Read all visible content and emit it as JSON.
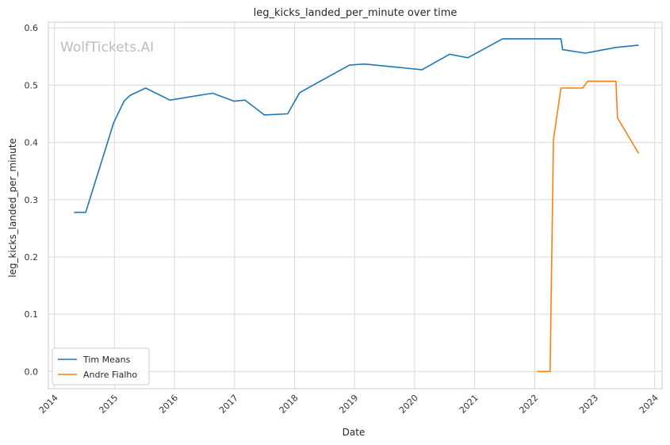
{
  "chart_data": {
    "type": "line",
    "title": "leg_kicks_landed_per_minute over time",
    "xlabel": "Date",
    "ylabel": "leg_kicks_landed_per_minute",
    "watermark": "WolfTickets.AI",
    "xlim": [
      "2013-11-25",
      "2024-02-15"
    ],
    "ylim": [
      -0.03,
      0.61
    ],
    "x_ticks": [
      "2014",
      "2015",
      "2016",
      "2017",
      "2018",
      "2019",
      "2020",
      "2021",
      "2022",
      "2023",
      "2024"
    ],
    "y_ticks": [
      "0.0",
      "0.1",
      "0.2",
      "0.3",
      "0.4",
      "0.5",
      "0.6"
    ],
    "grid": true,
    "legend_position": "lower-left",
    "series": [
      {
        "name": "Tim Means",
        "color": "#1f77b4",
        "points": [
          [
            "2014-05-01",
            0.278
          ],
          [
            "2014-07-10",
            0.278
          ],
          [
            "2014-12-28",
            0.435
          ],
          [
            "2015-02-28",
            0.472
          ],
          [
            "2015-04-05",
            0.482
          ],
          [
            "2015-07-10",
            0.495
          ],
          [
            "2015-12-05",
            0.474
          ],
          [
            "2016-08-20",
            0.486
          ],
          [
            "2016-12-30",
            0.472
          ],
          [
            "2017-03-05",
            0.474
          ],
          [
            "2017-07-01",
            0.448
          ],
          [
            "2017-11-20",
            0.45
          ],
          [
            "2018-02-01",
            0.487
          ],
          [
            "2018-12-01",
            0.535
          ],
          [
            "2019-03-01",
            0.537
          ],
          [
            "2020-02-15",
            0.527
          ],
          [
            "2020-08-01",
            0.554
          ],
          [
            "2020-11-20",
            0.548
          ],
          [
            "2021-06-20",
            0.581
          ],
          [
            "2022-06-10",
            0.581
          ],
          [
            "2022-06-20",
            0.562
          ],
          [
            "2022-11-05",
            0.556
          ],
          [
            "2023-05-10",
            0.566
          ],
          [
            "2023-09-25",
            0.57
          ]
        ]
      },
      {
        "name": "Andre Fialho",
        "color": "#ff7f0e",
        "points": [
          [
            "2022-01-15",
            0.0
          ],
          [
            "2022-04-05",
            0.0
          ],
          [
            "2022-04-25",
            0.405
          ],
          [
            "2022-06-10",
            0.495
          ],
          [
            "2022-10-20",
            0.495
          ],
          [
            "2022-11-20",
            0.507
          ],
          [
            "2023-05-10",
            0.507
          ],
          [
            "2023-05-20",
            0.443
          ],
          [
            "2023-09-25",
            0.381
          ]
        ]
      }
    ]
  }
}
